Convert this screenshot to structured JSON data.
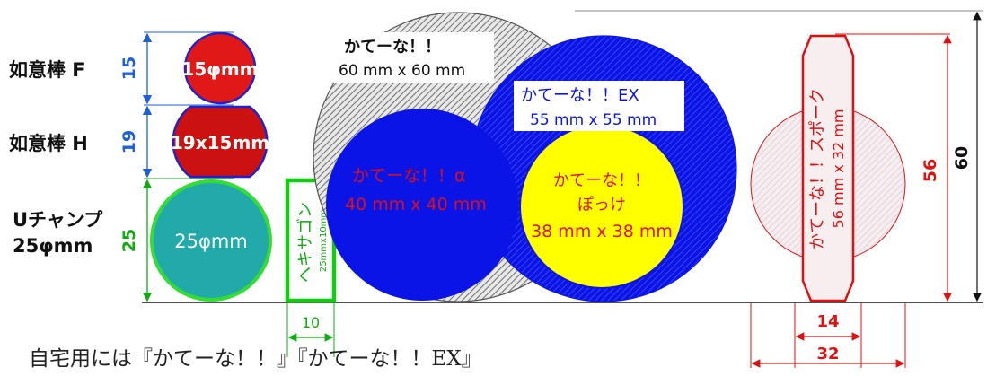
{
  "left_labels": {
    "f_name": "如意棒 F",
    "h_name": "如意棒 H",
    "u_name": "Uチャンプ",
    "u_size": "25φmm"
  },
  "dims": {
    "d15": "15",
    "d19": "19",
    "d25": "25",
    "d10": "10",
    "d56": "56",
    "d60": "60",
    "d14": "14",
    "d32": "32"
  },
  "items": {
    "f_label": "15φmm",
    "h_label": "19x15mm",
    "u_label": "25φmm",
    "hex_name": "ヘキサゴン",
    "hex_size": "25mmx10mm",
    "kateena_name": "かてーな！！",
    "kateena_size": "60 mm x 60 mm",
    "ex_name": "かてーな！！EX",
    "ex_size": "55 mm x 55 mm",
    "alpha_name": "かてーな！！α",
    "alpha_size": "40 mm x 40 mm",
    "pokke_name1": "かてーな！！",
    "pokke_name2": "ぽっけ",
    "pokke_size": "38 mm x 38 mm",
    "spoke_name": "かてーな！！スポーク",
    "spoke_size": "56 mm x 32 mm"
  },
  "caption": "自宅用には『かてーな！！』『かてーな！！EX』",
  "colors": {
    "f_fill": "#e01818",
    "h_fill": "#cc1111",
    "u_fill": "#22aaaa",
    "blue": "#0a14e6",
    "yellow": "#ffff00",
    "red_text": "#e01010",
    "green_dim": "#11aa11",
    "blue_dim": "#1f5fd8",
    "hatch": "#7a7a7a"
  }
}
